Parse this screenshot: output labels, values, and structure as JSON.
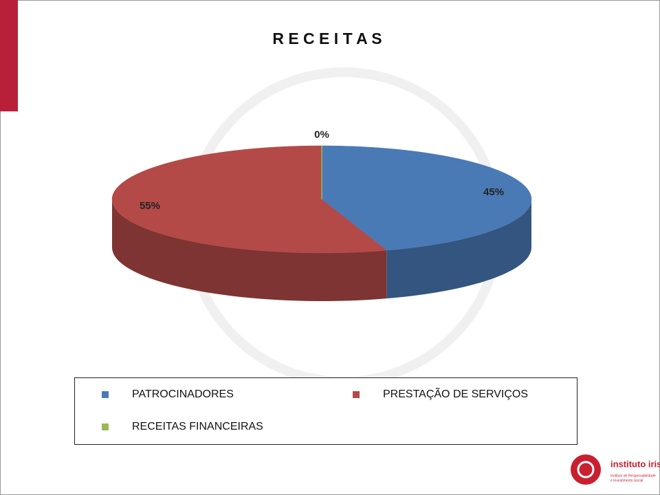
{
  "chart_data": {
    "type": "pie",
    "title": "R E C E I T A S",
    "categories": [
      "PATROCINADORES",
      "PRESTAÇÃO DE SERVIÇOS",
      "RECEITAS FINANCEIRAS"
    ],
    "values": [
      45,
      55,
      0
    ],
    "value_labels": [
      "45%",
      "55%",
      "0%"
    ],
    "colors": [
      "#4a7ab5",
      "#b34a47",
      "#98b954"
    ],
    "legend": "bottom"
  },
  "logo": {
    "name": "instituto iris",
    "tagline": [
      "Instituto de Responsabilidade",
      "e Investimento Social"
    ]
  }
}
